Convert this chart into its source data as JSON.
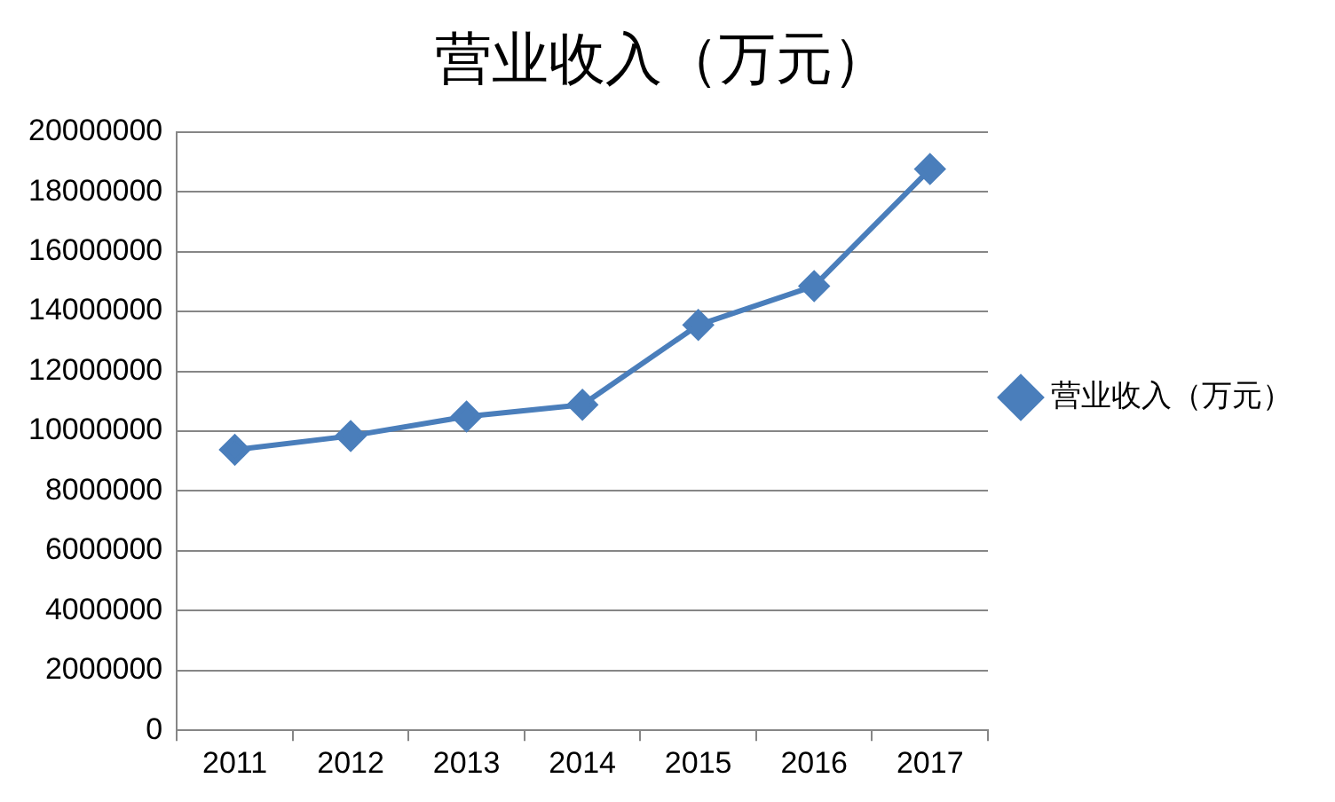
{
  "chart_data": {
    "type": "line",
    "title": "营业收入（万元）",
    "categories": [
      "2011",
      "2012",
      "2013",
      "2014",
      "2015",
      "2016",
      "2017"
    ],
    "series": [
      {
        "name": "营业收入（万元）",
        "color": "#4a7ebb",
        "values": [
          9380000,
          9840000,
          10490000,
          10880000,
          13550000,
          14850000,
          18760000
        ]
      }
    ],
    "ylim": [
      0,
      20000000
    ],
    "yticks": [
      0,
      2000000,
      4000000,
      6000000,
      8000000,
      10000000,
      12000000,
      14000000,
      16000000,
      18000000,
      20000000
    ],
    "grid": "y",
    "legend": "right",
    "marker": "diamond",
    "line_style": "solid"
  }
}
